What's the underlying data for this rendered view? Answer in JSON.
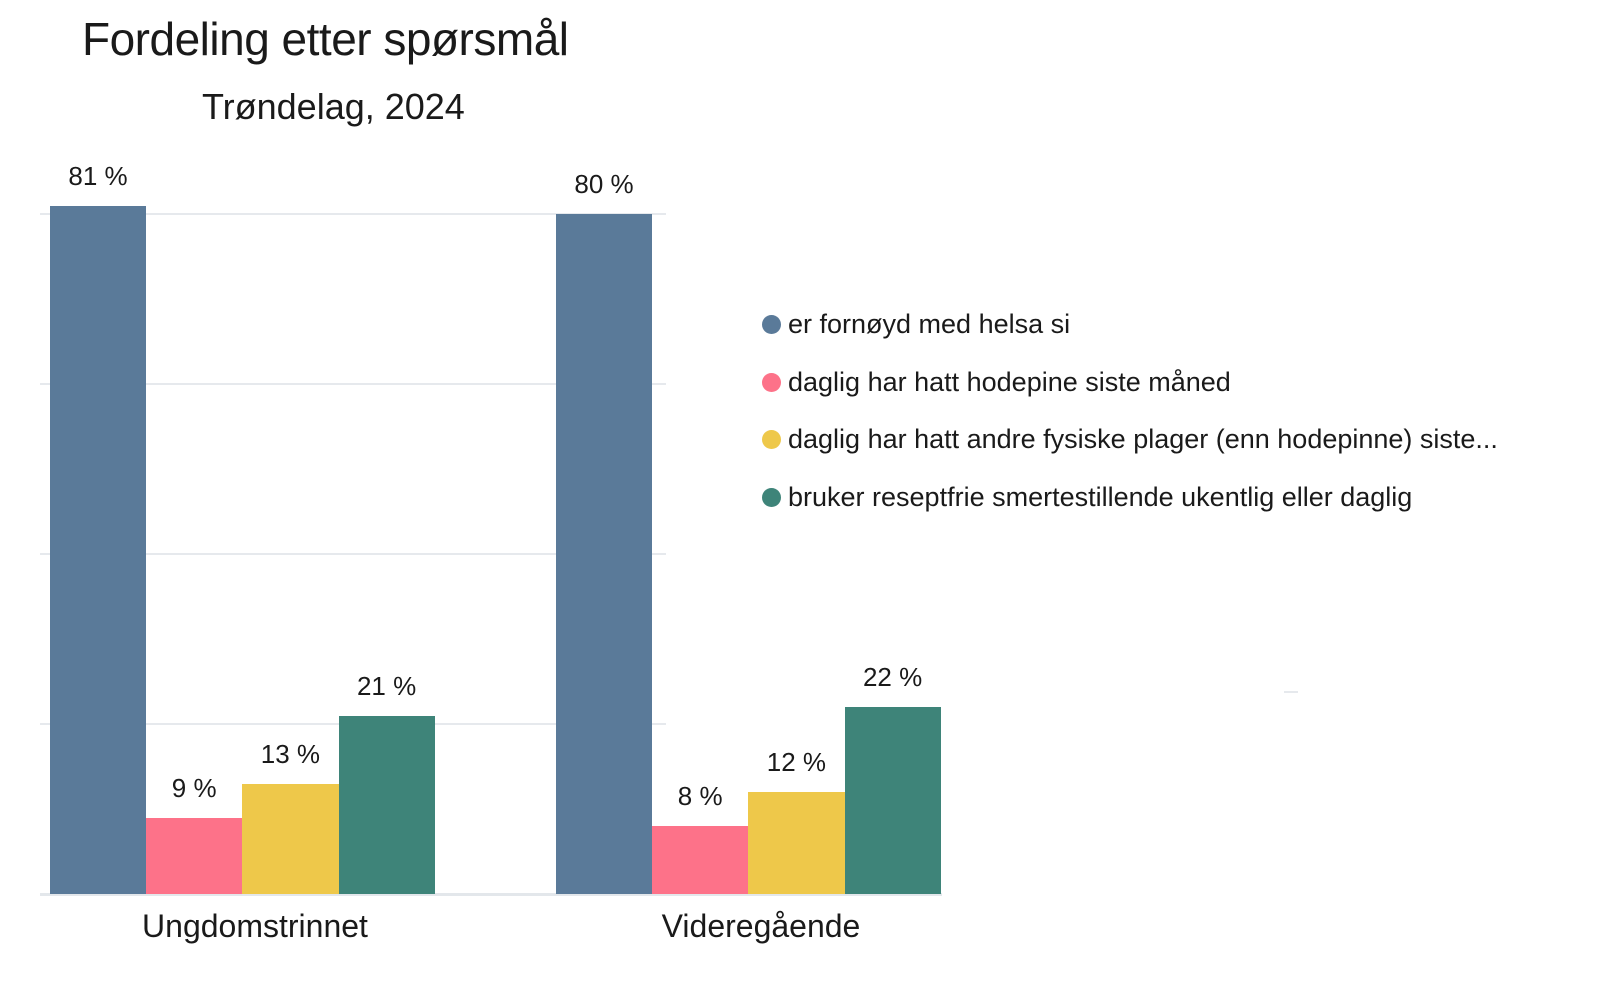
{
  "header": {
    "title": "Fordeling etter spørsmål",
    "subtitle": "Trøndelag, 2024"
  },
  "chart_data": {
    "type": "bar",
    "title": "Fordeling etter spørsmål",
    "subtitle": "Trøndelag, 2024",
    "xlabel": "",
    "ylabel": "",
    "ylim": [
      0,
      100
    ],
    "grid": true,
    "legend_position": "right",
    "categories": [
      "Ungdomstrinnet",
      "Videregående"
    ],
    "series": [
      {
        "name": "er fornøyd med helsa si",
        "color": "#5a7a99",
        "values": [
          81,
          80
        ],
        "labels": [
          "81 %",
          "80 %"
        ]
      },
      {
        "name": "daglig har hatt hodepine siste måned",
        "color": "#fd7289",
        "values": [
          9,
          8
        ],
        "labels": [
          "9 %",
          "8 %"
        ]
      },
      {
        "name": "daglig har hatt andre fysiske plager (enn hodepinne) siste...",
        "color": "#eec84a",
        "values": [
          13,
          12
        ],
        "labels": [
          "13 %",
          "12 %"
        ]
      },
      {
        "name": "bruker reseptfrie smertestillende ukentlig eller daglig",
        "color": "#3e8479",
        "values": [
          21,
          22
        ],
        "labels": [
          "21 %",
          "22 %"
        ]
      }
    ]
  }
}
